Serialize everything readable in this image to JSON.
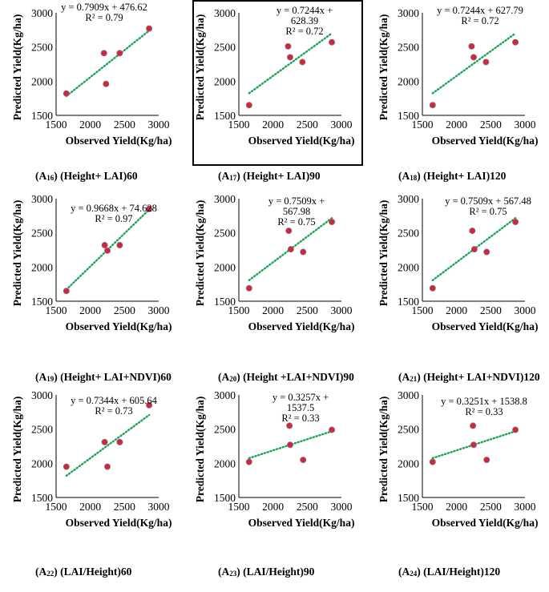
{
  "chart_data": [
    {
      "id": "A16",
      "type": "scatter",
      "caption": {
        "prefix": "(A",
        "sub": "16",
        "suffix": ") (Height+ LAI)60"
      },
      "xlabel": "Observed Yield(Kg/ha)",
      "ylabel": "Predicted Yield(Kg/ha)",
      "xlim": [
        1500,
        3000
      ],
      "ylim": [
        1500,
        3000
      ],
      "xticks": [
        1500,
        2000,
        2500,
        3000
      ],
      "yticks": [
        1500,
        2000,
        2500,
        3000
      ],
      "x": [
        1650,
        2200,
        2230,
        2430,
        2860
      ],
      "y": [
        1820,
        2410,
        1960,
        2410,
        2770
      ],
      "trendline": {
        "slope": 0.7909,
        "intercept": 476.62,
        "x_range": [
          1650,
          2860
        ]
      },
      "equation_lines": [
        "y = 0.7909x + 476.62",
        "R² = 0.79"
      ],
      "marker_color": "#d6233f",
      "trend_color": "#1aa35a"
    },
    {
      "id": "A17",
      "type": "scatter",
      "caption": {
        "prefix": "(A",
        "sub": "17",
        "suffix": ") (Height+ LAI)90"
      },
      "xlabel": "Observed Yield(Kg/ha)",
      "ylabel": "Predicted Yield(Kg/ha)",
      "xlim": [
        1500,
        3000
      ],
      "ylim": [
        1500,
        3000
      ],
      "xticks": [
        1500,
        2000,
        2500,
        3000
      ],
      "yticks": [
        1500,
        2000,
        2500,
        3000
      ],
      "x": [
        1650,
        2220,
        2250,
        2430,
        2860
      ],
      "y": [
        1650,
        2510,
        2350,
        2280,
        2570
      ],
      "trendline": {
        "slope": 0.7244,
        "intercept": 628.39,
        "x_range": [
          1650,
          2860
        ]
      },
      "equation_lines": [
        "y = 0.7244x +",
        "628.39",
        "R² = 0.72"
      ],
      "marker_color": "#d6233f",
      "trend_color": "#1aa35a"
    },
    {
      "id": "A18",
      "type": "scatter",
      "caption": {
        "prefix": "(A",
        "sub": "18",
        "suffix": ") (Height+ LAI)120"
      },
      "xlabel": "Observed Yield(Kg/ha)",
      "ylabel": "Predicted Yield(Kg/ha)",
      "xlim": [
        1500,
        3000
      ],
      "ylim": [
        1500,
        3000
      ],
      "xticks": [
        1500,
        2000,
        2500,
        3000
      ],
      "yticks": [
        1500,
        2000,
        2500,
        3000
      ],
      "x": [
        1650,
        2220,
        2250,
        2430,
        2860
      ],
      "y": [
        1650,
        2510,
        2350,
        2280,
        2570
      ],
      "trendline": {
        "slope": 0.7244,
        "intercept": 627.79,
        "x_range": [
          1650,
          2860
        ]
      },
      "equation_lines": [
        "y = 0.7244x + 627.79",
        "R² = 0.72"
      ],
      "marker_color": "#d6233f",
      "trend_color": "#1aa35a"
    },
    {
      "id": "A19",
      "type": "scatter",
      "caption": {
        "prefix": "(A",
        "sub": "19",
        "suffix": ") (Height+ LAI+NDVI)60"
      },
      "xlabel": "Observed Yield(Kg/ha)",
      "ylabel": "Predicted Yield(Kg/ha)",
      "xlim": [
        1500,
        3000
      ],
      "ylim": [
        1500,
        3000
      ],
      "xticks": [
        1500,
        2000,
        2500,
        3000
      ],
      "yticks": [
        1500,
        2000,
        2500,
        3000
      ],
      "x": [
        1650,
        2210,
        2250,
        2430,
        2860
      ],
      "y": [
        1650,
        2320,
        2240,
        2320,
        2850
      ],
      "trendline": {
        "slope": 0.9668,
        "intercept": 74.628,
        "x_range": [
          1650,
          2860
        ]
      },
      "equation_lines": [
        "y = 0.9668x + 74.628",
        "R² = 0.97"
      ],
      "marker_color": "#d6233f",
      "trend_color": "#1aa35a"
    },
    {
      "id": "A20",
      "type": "scatter",
      "caption": {
        "prefix": "(A",
        "sub": "20",
        "suffix": ") (Height +LAI+NDVI)90"
      },
      "xlabel": "Observed Yield(Kg/ha)",
      "ylabel": "Predicted Yield(Kg/ha)",
      "xlim": [
        1500,
        3000
      ],
      "ylim": [
        1500,
        3000
      ],
      "xticks": [
        1500,
        2000,
        2500,
        3000
      ],
      "yticks": [
        1500,
        2000,
        2500,
        3000
      ],
      "x": [
        1650,
        2230,
        2260,
        2440,
        2860
      ],
      "y": [
        1690,
        2530,
        2260,
        2220,
        2660
      ],
      "trendline": {
        "slope": 0.7509,
        "intercept": 567.98,
        "x_range": [
          1650,
          2860
        ]
      },
      "equation_lines": [
        "y = 0.7509x +",
        "567.98",
        "R² = 0.75"
      ],
      "marker_color": "#d6233f",
      "trend_color": "#1aa35a"
    },
    {
      "id": "A21",
      "type": "scatter",
      "caption": {
        "prefix": "(A",
        "sub": "21",
        "suffix": ") (Height+ LAI+NDVI)120"
      },
      "xlabel": "Observed Yield(Kg/ha)",
      "ylabel": "Predicted Yield(Kg/ha)",
      "xlim": [
        1500,
        3000
      ],
      "ylim": [
        1500,
        3000
      ],
      "xticks": [
        1500,
        2000,
        2500,
        3000
      ],
      "yticks": [
        1500,
        2000,
        2500,
        3000
      ],
      "x": [
        1650,
        2230,
        2260,
        2440,
        2860
      ],
      "y": [
        1690,
        2530,
        2260,
        2220,
        2660
      ],
      "trendline": {
        "slope": 0.7509,
        "intercept": 567.48,
        "x_range": [
          1650,
          2860
        ]
      },
      "equation_lines": [
        "y = 0.7509x + 567.48",
        "R² = 0.75"
      ],
      "marker_color": "#d6233f",
      "trend_color": "#1aa35a"
    },
    {
      "id": "A22",
      "type": "scatter",
      "caption": {
        "prefix": "(A",
        "sub": "22",
        "suffix": ") (LAI/Height)60"
      },
      "xlabel": "Observed Yield(Kg/ha)",
      "ylabel": "Predicted Yield(Kg/ha)",
      "xlim": [
        1500,
        3000
      ],
      "ylim": [
        1500,
        3000
      ],
      "xticks": [
        1500,
        2000,
        2500,
        3000
      ],
      "yticks": [
        1500,
        2000,
        2500,
        3000
      ],
      "x": [
        1650,
        2210,
        2250,
        2430,
        2860
      ],
      "y": [
        1950,
        2310,
        1950,
        2310,
        2850
      ],
      "trendline": {
        "slope": 0.7344,
        "intercept": 605.64,
        "x_range": [
          1650,
          2860
        ]
      },
      "equation_lines": [
        "y = 0.7344x + 605.64",
        "R² = 0.73"
      ],
      "marker_color": "#d6233f",
      "trend_color": "#1aa35a"
    },
    {
      "id": "A23",
      "type": "scatter",
      "caption": {
        "prefix": "(A",
        "sub": "23",
        "suffix": ") (LAI/Height)90"
      },
      "xlabel": "Observed Yield(Kg/ha)",
      "ylabel": "Predicted Yield(Kg/ha)",
      "xlim": [
        1500,
        3000
      ],
      "ylim": [
        1500,
        3000
      ],
      "xticks": [
        1500,
        2000,
        2500,
        3000
      ],
      "yticks": [
        1500,
        2000,
        2500,
        3000
      ],
      "x": [
        1650,
        2240,
        2250,
        2440,
        2860
      ],
      "y": [
        2020,
        2550,
        2270,
        2050,
        2490
      ],
      "trendline": {
        "slope": 0.3257,
        "intercept": 1537.5,
        "x_range": [
          1650,
          2860
        ]
      },
      "equation_lines": [
        "y = 0.3257x +",
        "1537.5",
        "R² = 0.33"
      ],
      "marker_color": "#d6233f",
      "trend_color": "#1aa35a"
    },
    {
      "id": "A24",
      "type": "scatter",
      "caption": {
        "prefix": "(A",
        "sub": "24",
        "suffix": ") (LAI/Height)120"
      },
      "xlabel": "Observed Yield(Kg/ha)",
      "ylabel": "Predicted Yield(Kg/ha)",
      "xlim": [
        1500,
        3000
      ],
      "ylim": [
        1500,
        3000
      ],
      "xticks": [
        1500,
        2000,
        2500,
        3000
      ],
      "yticks": [
        1500,
        2000,
        2500,
        3000
      ],
      "x": [
        1650,
        2240,
        2250,
        2440,
        2860
      ],
      "y": [
        2020,
        2550,
        2270,
        2050,
        2490
      ],
      "trendline": {
        "slope": 0.3251,
        "intercept": 1538.8,
        "x_range": [
          1650,
          2860
        ]
      },
      "equation_lines": [
        "y = 0.3251x + 1538.8",
        "R² = 0.33"
      ],
      "marker_color": "#d6233f",
      "trend_color": "#1aa35a"
    }
  ]
}
